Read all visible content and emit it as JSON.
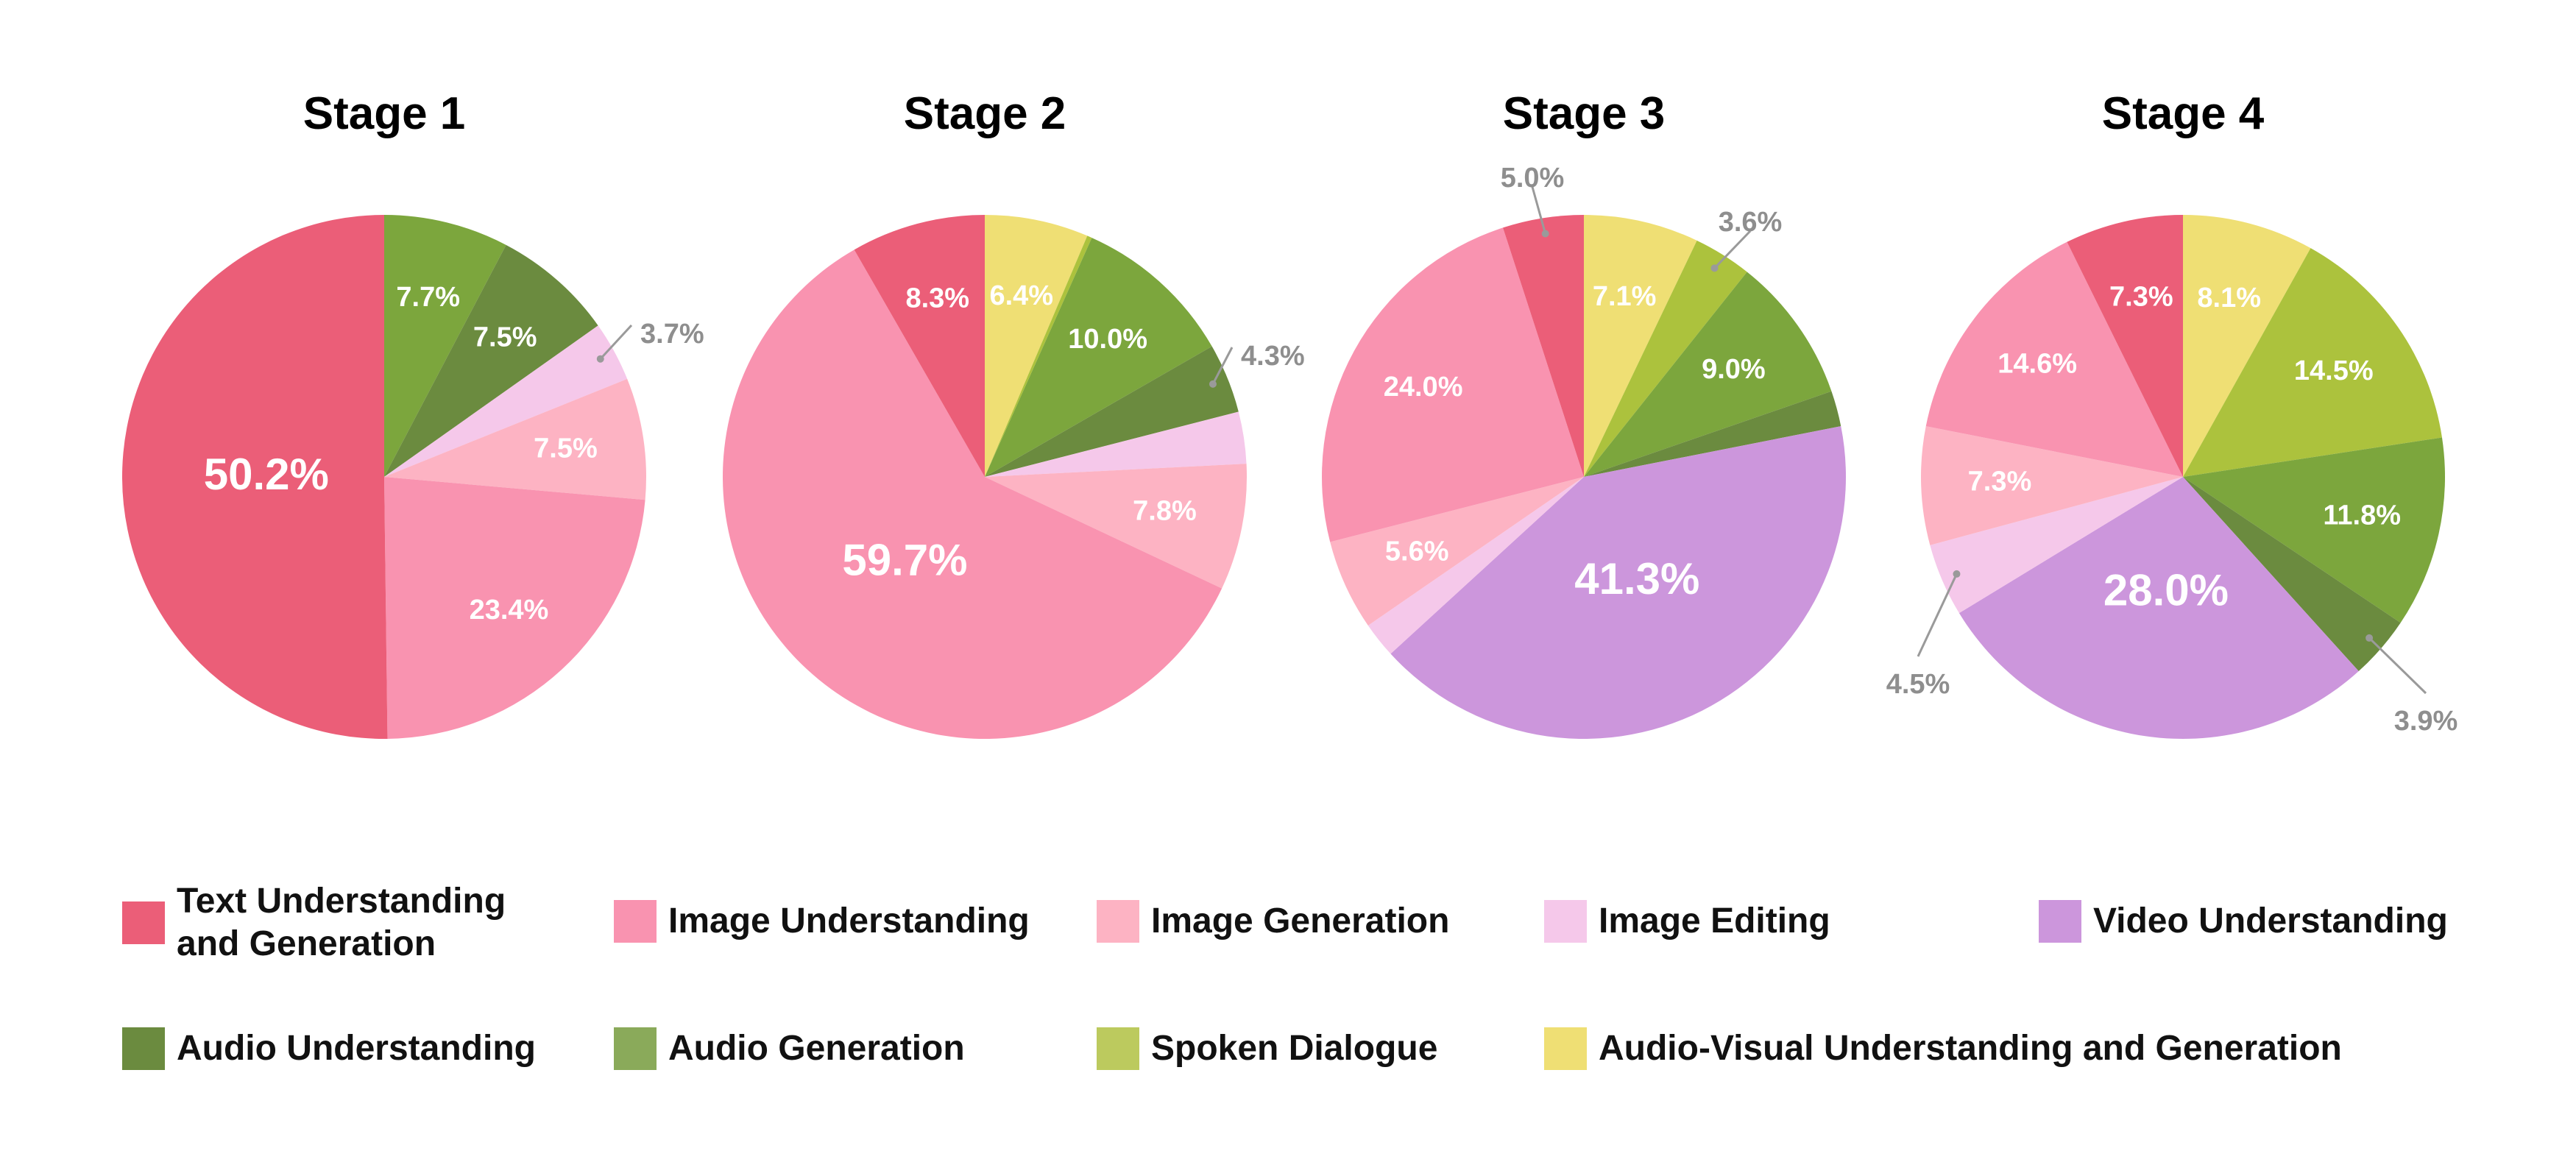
{
  "colors": {
    "text": "#eb5e78",
    "image_und": "#f993b0",
    "image_gen": "#fdb3c3",
    "image_edit": "#f5c8ea",
    "video": "#cc96dc",
    "audio_und": "#6b8b3f",
    "audio_gen": "#7ca63d",
    "spoken": "#acc23d",
    "av": "#efdf74"
  },
  "legend": [
    {
      "key": "text",
      "label": "Text Understanding and Generation",
      "color": "#eb5e78"
    },
    {
      "key": "image_und",
      "label": "Image Understanding",
      "color": "#f993b0"
    },
    {
      "key": "image_gen",
      "label": "Image Generation",
      "color": "#fdb3c3"
    },
    {
      "key": "image_edit",
      "label": "Image Editing",
      "color": "#f5c8ea"
    },
    {
      "key": "video",
      "label": "Video Understanding",
      "color": "#cc96dc"
    },
    {
      "key": "audio_und",
      "label": "Audio Understanding",
      "color": "#6b8b3f"
    },
    {
      "key": "audio_gen",
      "label": "Audio Generation",
      "color": "#8aaa5a"
    },
    {
      "key": "spoken",
      "label": "Spoken Dialogue",
      "color": "#bcca5e"
    },
    {
      "key": "av",
      "label": "Audio-Visual Understanding and Generation",
      "color": "#efdf74"
    }
  ],
  "chart_data": [
    {
      "type": "pie",
      "title": "Stage 1",
      "slices": [
        {
          "key": "audio_gen",
          "value": 7.7,
          "label": "7.7%"
        },
        {
          "key": "audio_und",
          "value": 7.5,
          "label": "7.5%"
        },
        {
          "key": "image_edit",
          "value": 3.7,
          "label": "3.7%"
        },
        {
          "key": "image_gen",
          "value": 7.5,
          "label": "7.5%"
        },
        {
          "key": "image_und",
          "value": 23.4,
          "label": "23.4%"
        },
        {
          "key": "text",
          "value": 50.2,
          "label": "50.2%"
        }
      ]
    },
    {
      "type": "pie",
      "title": "Stage 2",
      "slices": [
        {
          "key": "av",
          "value": 6.4,
          "label": "6.4%"
        },
        {
          "key": "spoken",
          "value": 0.3,
          "label": ""
        },
        {
          "key": "audio_gen",
          "value": 10.0,
          "label": "10.0%"
        },
        {
          "key": "audio_und",
          "value": 4.3,
          "label": "4.3%"
        },
        {
          "key": "image_edit",
          "value": 3.2,
          "label": ""
        },
        {
          "key": "image_gen",
          "value": 7.8,
          "label": "7.8%"
        },
        {
          "key": "image_und",
          "value": 59.7,
          "label": "59.7%"
        },
        {
          "key": "text",
          "value": 8.3,
          "label": "8.3%"
        }
      ]
    },
    {
      "type": "pie",
      "title": "Stage 3",
      "slices": [
        {
          "key": "av",
          "value": 7.1,
          "label": "7.1%"
        },
        {
          "key": "spoken",
          "value": 3.6,
          "label": "3.6%"
        },
        {
          "key": "audio_gen",
          "value": 9.0,
          "label": "9.0%"
        },
        {
          "key": "audio_und",
          "value": 2.2,
          "label": ""
        },
        {
          "key": "video",
          "value": 41.3,
          "label": "41.3%"
        },
        {
          "key": "image_edit",
          "value": 2.2,
          "label": ""
        },
        {
          "key": "image_gen",
          "value": 5.6,
          "label": "5.6%"
        },
        {
          "key": "image_und",
          "value": 24.0,
          "label": "24.0%"
        },
        {
          "key": "text",
          "value": 5.0,
          "label": "5.0%"
        }
      ]
    },
    {
      "type": "pie",
      "title": "Stage 4",
      "slices": [
        {
          "key": "av",
          "value": 8.1,
          "label": "8.1%"
        },
        {
          "key": "spoken",
          "value": 14.5,
          "label": "14.5%"
        },
        {
          "key": "audio_gen",
          "value": 11.8,
          "label": "11.8%"
        },
        {
          "key": "audio_und",
          "value": 3.9,
          "label": "3.9%"
        },
        {
          "key": "video",
          "value": 28.0,
          "label": "28.0%"
        },
        {
          "key": "image_edit",
          "value": 4.5,
          "label": "4.5%"
        },
        {
          "key": "image_gen",
          "value": 7.3,
          "label": "7.3%"
        },
        {
          "key": "image_und",
          "value": 14.6,
          "label": "14.6%"
        },
        {
          "key": "text",
          "value": 7.3,
          "label": "7.3%"
        }
      ]
    }
  ]
}
